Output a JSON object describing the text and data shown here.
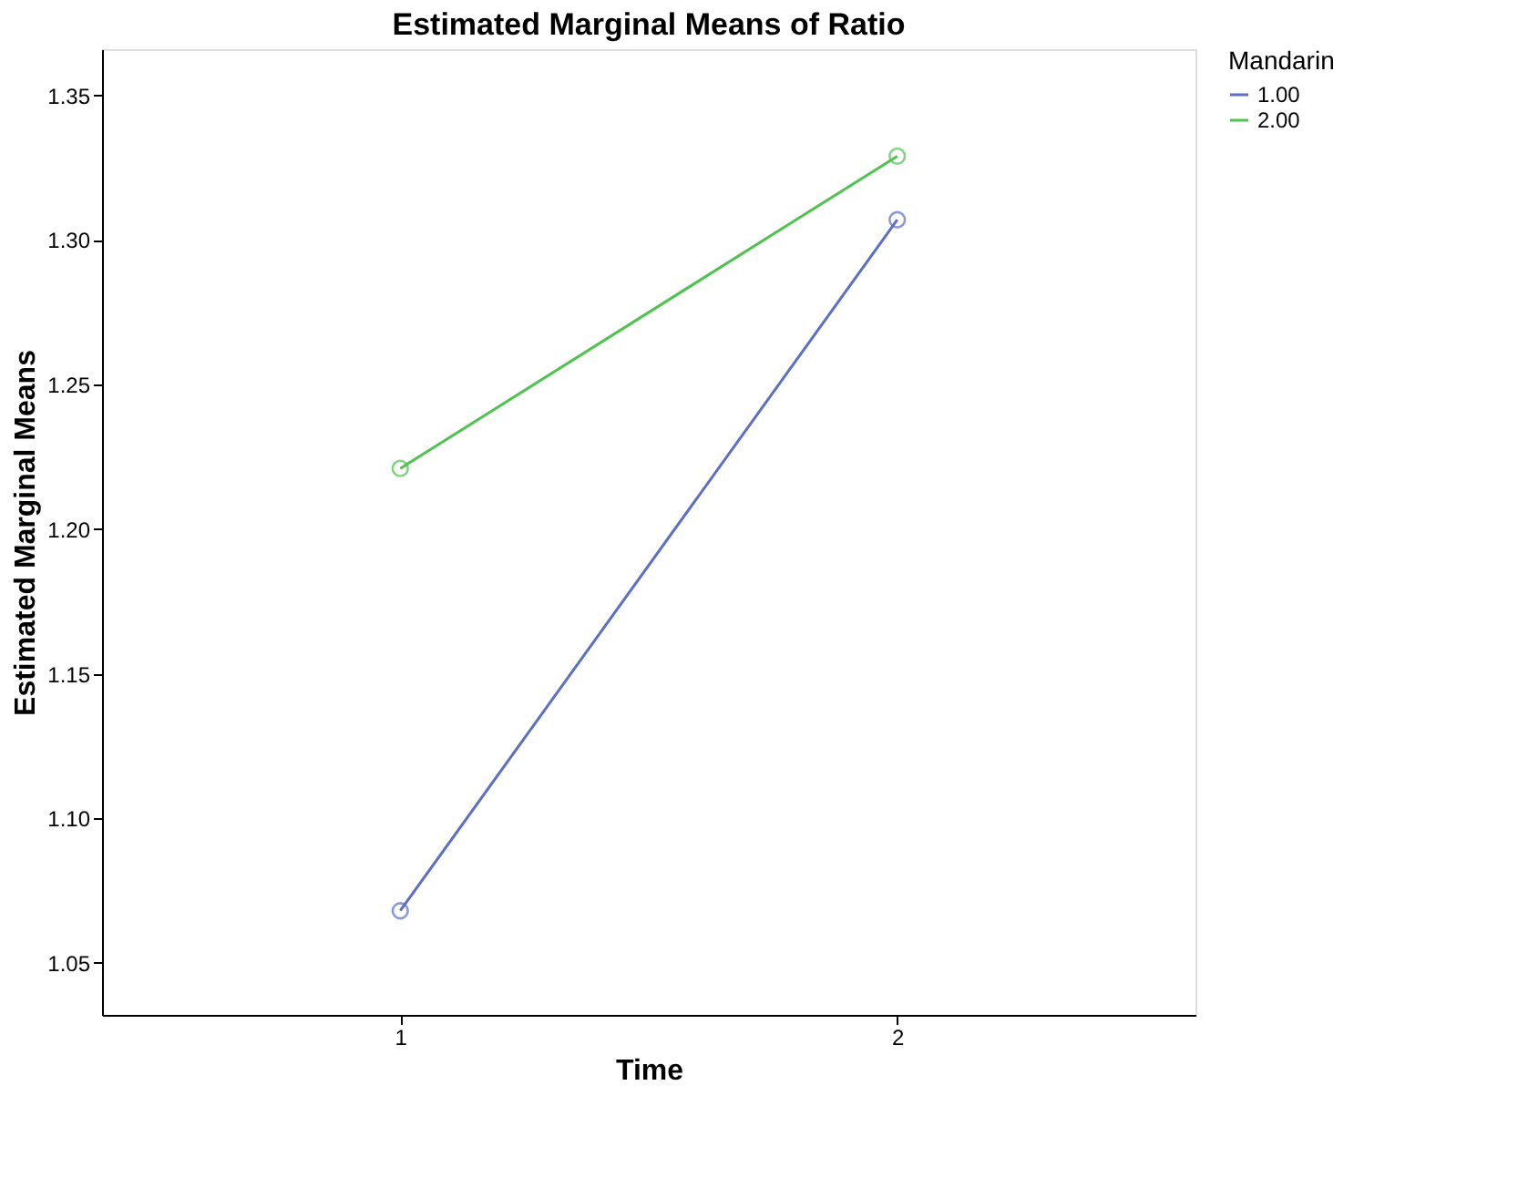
{
  "chart_data": {
    "type": "line",
    "title": "Estimated Marginal Means of Ratio",
    "xlabel": "Time",
    "ylabel": "Estimated Marginal Means",
    "legend_title": "Mandarin",
    "categories": [
      "1",
      "2"
    ],
    "series": [
      {
        "name": "1.00",
        "color": "#5b6fc4",
        "values": [
          1.068,
          1.307
        ]
      },
      {
        "name": "2.00",
        "color": "#4fc24f",
        "values": [
          1.221,
          1.329
        ]
      }
    ],
    "ylim": [
      1.032,
      1.366
    ],
    "yticks": [
      1.05,
      {
        "value": 1.1,
        "label": "1.10"
      },
      1.15,
      {
        "value": 1.2,
        "label": "1.20"
      },
      1.25,
      {
        "value": 1.3,
        "label": "1.30"
      },
      1.35
    ],
    "grid": false,
    "legend": "top right",
    "marker": "circle",
    "line_style": "solid"
  }
}
